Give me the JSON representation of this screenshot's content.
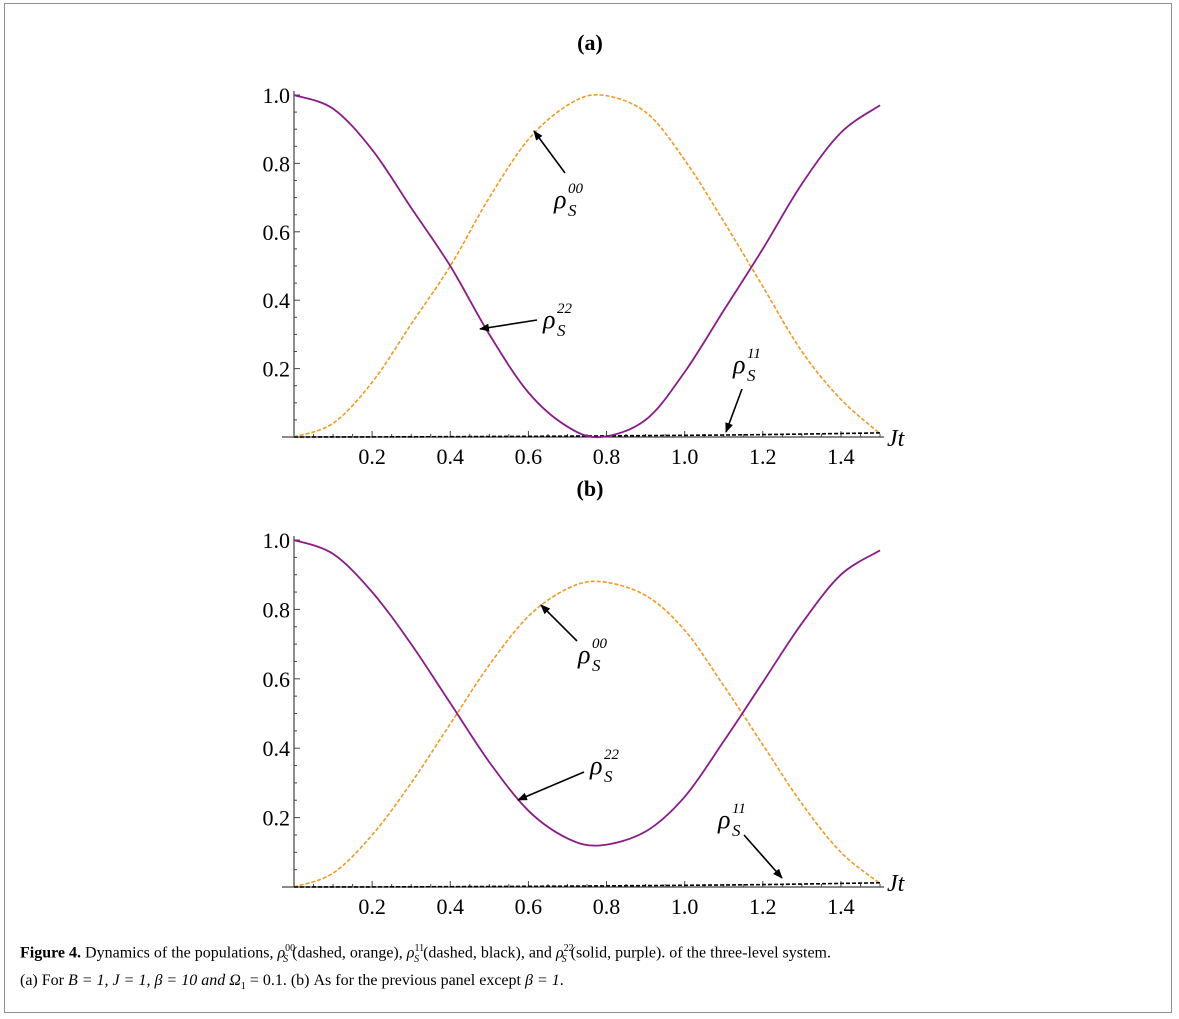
{
  "figure": {
    "panels": [
      {
        "label": "(a)",
        "x_axis_label": "Jt",
        "annotations": {
          "rho00": "00",
          "rho11": "11",
          "rho22": "22",
          "rho_symbol": "ρ",
          "subscript": "S"
        }
      },
      {
        "label": "(b)",
        "x_axis_label": "Jt",
        "annotations": {
          "rho00": "00",
          "rho11": "11",
          "rho22": "22",
          "rho_symbol": "ρ",
          "subscript": "S"
        }
      }
    ],
    "caption": {
      "lead": "Figure 4.",
      "text_1": " Dynamics of the populations, ",
      "text_2": " (dashed, orange), ",
      "text_3": " (dashed, black), and ",
      "text_4": " (solid, purple). of the three-level system.",
      "line2_a": "(a) For ",
      "line2_params_a": "B = 1, J = 1, β = 10 and Ω",
      "line2_sub": "1",
      "line2_b": " = 0.1. (b) As for the previous panel except ",
      "line2_c": "β = 1",
      "line2_end": "."
    }
  },
  "chart_data": [
    {
      "type": "line",
      "title": "(a)",
      "xlabel": "Jt",
      "ylabel": "",
      "xlim": [
        0,
        1.5
      ],
      "ylim": [
        0,
        1.0
      ],
      "x_ticks": [
        "0.2",
        "0.4",
        "0.6",
        "0.8",
        "1.0",
        "1.2",
        "1.4"
      ],
      "y_ticks": [
        "0.2",
        "0.4",
        "0.6",
        "0.8",
        "1.0"
      ],
      "series": [
        {
          "name": "ρS00",
          "style": "dashed",
          "color": "#f39a1e",
          "x": [
            0,
            0.1,
            0.2,
            0.3,
            0.4,
            0.5,
            0.6,
            0.7,
            0.785,
            0.9,
            1.0,
            1.1,
            1.2,
            1.3,
            1.4,
            1.5
          ],
          "y": [
            0,
            0.04,
            0.16,
            0.33,
            0.5,
            0.7,
            0.87,
            0.97,
            1.0,
            0.95,
            0.81,
            0.63,
            0.44,
            0.25,
            0.11,
            0.01
          ]
        },
        {
          "name": "ρS11",
          "style": "dashed",
          "color": "#000000",
          "x": [
            0,
            0.3,
            0.6,
            0.9,
            1.2,
            1.5
          ],
          "y": [
            0,
            0.0005,
            0.002,
            0.004,
            0.007,
            0.012
          ]
        },
        {
          "name": "ρS22",
          "style": "solid",
          "color": "#8b1a8b",
          "x": [
            0,
            0.1,
            0.2,
            0.3,
            0.4,
            0.5,
            0.6,
            0.7,
            0.785,
            0.9,
            1.0,
            1.1,
            1.2,
            1.3,
            1.4,
            1.5
          ],
          "y": [
            1.0,
            0.96,
            0.84,
            0.67,
            0.5,
            0.3,
            0.13,
            0.03,
            0.0,
            0.05,
            0.19,
            0.37,
            0.55,
            0.74,
            0.89,
            0.97
          ]
        }
      ],
      "annotations": [
        "ρS00",
        "ρS22",
        "ρS11"
      ]
    },
    {
      "type": "line",
      "title": "(b)",
      "xlabel": "Jt",
      "ylabel": "",
      "xlim": [
        0,
        1.5
      ],
      "ylim": [
        0,
        1.0
      ],
      "x_ticks": [
        "0.2",
        "0.4",
        "0.6",
        "0.8",
        "1.0",
        "1.2",
        "1.4"
      ],
      "y_ticks": [
        "0.2",
        "0.4",
        "0.6",
        "0.8",
        "1.0"
      ],
      "series": [
        {
          "name": "ρS00",
          "style": "dashed",
          "color": "#f39a1e",
          "x": [
            0,
            0.1,
            0.2,
            0.3,
            0.4,
            0.5,
            0.6,
            0.7,
            0.785,
            0.9,
            1.0,
            1.1,
            1.2,
            1.3,
            1.4,
            1.5
          ],
          "y": [
            0,
            0.04,
            0.15,
            0.3,
            0.47,
            0.64,
            0.78,
            0.86,
            0.88,
            0.84,
            0.74,
            0.58,
            0.41,
            0.24,
            0.1,
            0.01
          ]
        },
        {
          "name": "ρS11",
          "style": "dashed",
          "color": "#000000",
          "x": [
            0,
            0.3,
            0.6,
            0.9,
            1.2,
            1.5
          ],
          "y": [
            0,
            0.0005,
            0.002,
            0.004,
            0.007,
            0.012
          ]
        },
        {
          "name": "ρS22",
          "style": "solid",
          "color": "#8b1a8b",
          "x": [
            0,
            0.1,
            0.2,
            0.3,
            0.4,
            0.5,
            0.6,
            0.7,
            0.785,
            0.9,
            1.0,
            1.1,
            1.2,
            1.3,
            1.4,
            1.5
          ],
          "y": [
            1.0,
            0.96,
            0.85,
            0.7,
            0.53,
            0.36,
            0.22,
            0.14,
            0.12,
            0.16,
            0.26,
            0.42,
            0.59,
            0.76,
            0.9,
            0.97
          ]
        }
      ],
      "annotations": [
        "ρS00",
        "ρS22",
        "ρS11"
      ]
    }
  ]
}
